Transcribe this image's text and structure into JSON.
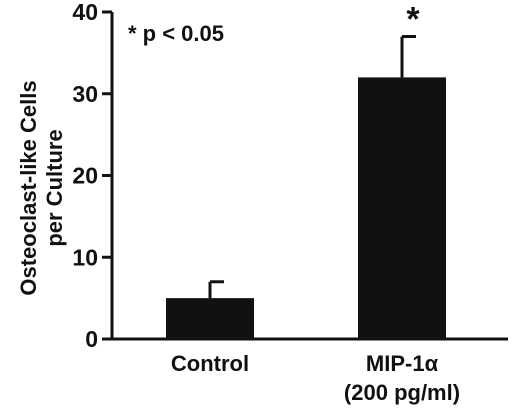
{
  "chart_data": {
    "type": "bar",
    "categories": [
      "Control",
      "MIP-1α"
    ],
    "category_sublabels": [
      "",
      "(200 pg/ml)"
    ],
    "values": [
      5,
      32
    ],
    "errors": [
      2,
      5
    ],
    "significance_markers": [
      "",
      "*"
    ],
    "annotation": "* p < 0.05",
    "ylabel_line1": "Osteoclast-like Cells",
    "ylabel_line2": "per Culture",
    "xlabel": "",
    "title": "",
    "ylim": [
      0,
      40
    ],
    "yticks": [
      0,
      10,
      20,
      30,
      40
    ],
    "bar_color": "#111111",
    "grid": false,
    "legend": "none"
  }
}
